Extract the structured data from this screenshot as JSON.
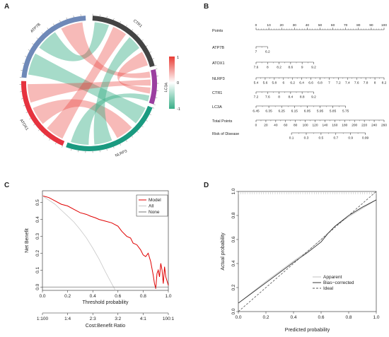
{
  "panel_labels": [
    "A",
    "B",
    "C",
    "D"
  ],
  "chart_data": [
    {
      "panel": "A",
      "type": "chord",
      "genes": [
        "CTR1",
        "LC3A",
        "NLRP3",
        "ATOX1",
        "ATP7B"
      ],
      "gene_colors": [
        "#444444",
        "#9b3fa0",
        "#1a9a80",
        "#e6333f",
        "#6f89b8"
      ],
      "links": [
        {
          "from": "ATP7B",
          "to": "NLRP3",
          "sign": "negative"
        },
        {
          "from": "ATP7B",
          "to": "CTR1",
          "sign": "negative"
        },
        {
          "from": "ATP7B",
          "to": "LC3A",
          "sign": "positive"
        },
        {
          "from": "ATOX1",
          "to": "CTR1",
          "sign": "positive"
        },
        {
          "from": "ATOX1",
          "to": "NLRP3",
          "sign": "positive"
        },
        {
          "from": "ATOX1",
          "to": "LC3A",
          "sign": "positive"
        },
        {
          "from": "CTR1",
          "to": "NLRP3",
          "sign": "negative"
        },
        {
          "from": "CTR1",
          "to": "LC3A",
          "sign": "positive"
        },
        {
          "from": "NLRP3",
          "to": "LC3A",
          "sign": "negative"
        }
      ],
      "legend": {
        "max_label": "1",
        "mid_label": "0",
        "min_label": "-1",
        "max_color": "#e83a33",
        "mid_color": "#ffffff",
        "min_color": "#3aaf88"
      }
    },
    {
      "panel": "B",
      "type": "nomogram",
      "rows": [
        {
          "label": "Points",
          "ticks": [
            "0",
            "10",
            "20",
            "30",
            "40",
            "50",
            "60",
            "70",
            "80",
            "90",
            "100"
          ],
          "from": 0,
          "to": 100
        },
        {
          "label": "ATP7B",
          "ticks": [
            "7",
            "6.2"
          ],
          "from": 0,
          "to": 9
        },
        {
          "label": "ATOX1",
          "ticks": [
            "7.6",
            "8",
            "8.2",
            "8.6",
            "9",
            "9.2"
          ],
          "from": 0,
          "to": 45
        },
        {
          "label": "NLRP3",
          "ticks": [
            "5.4",
            "5.6",
            "5.8",
            "6",
            "6.2",
            "6.4",
            "6.6",
            "6.8",
            "7",
            "7.2",
            "7.4",
            "7.6",
            "7.8",
            "8",
            "8.2"
          ],
          "from": 0,
          "to": 100
        },
        {
          "label": "CTR1",
          "ticks": [
            "7.2",
            "7.6",
            "8",
            "8.4",
            "8.8",
            "9.2"
          ],
          "from": 0,
          "to": 45
        },
        {
          "label": "LC3A",
          "ticks": [
            "6.45",
            "6.35",
            "6.25",
            "6.15",
            "6.05",
            "5.95",
            "5.85",
            "5.75"
          ],
          "from": 0,
          "to": 70
        },
        {
          "label": "Total Points",
          "ticks": [
            "0",
            "20",
            "40",
            "60",
            "80",
            "100",
            "120",
            "140",
            "160",
            "180",
            "200",
            "220",
            "240",
            "260"
          ],
          "from": 0,
          "to": 260
        },
        {
          "label": "Risk of Disease",
          "ticks": [
            "0.1",
            "0.3",
            "0.5",
            "0.7",
            "0.9",
            "0.99"
          ],
          "from": 72,
          "to": 222
        }
      ]
    },
    {
      "panel": "C",
      "type": "line",
      "title": "",
      "xlabel": "Threshold probability",
      "ylabel": "Net Benefit",
      "xlabel2": "Cost:Benefit Ratio",
      "x_ticks": [
        "0.0",
        "0.2",
        "0.4",
        "0.6",
        "0.8",
        "1.0"
      ],
      "x2_ticks": [
        "1:100",
        "1:4",
        "2:3",
        "3:2",
        "4:1",
        "100:1"
      ],
      "y_ticks": [
        "0.0",
        "0.1",
        "0.2",
        "0.3",
        "0.4",
        "0.5"
      ],
      "xlim": [
        0,
        1
      ],
      "ylim": [
        -0.02,
        0.57
      ],
      "legend_position": "top-right",
      "series": [
        {
          "name": "Model",
          "color": "#e00000",
          "x": [
            0.0,
            0.05,
            0.1,
            0.15,
            0.2,
            0.25,
            0.3,
            0.35,
            0.38,
            0.42,
            0.45,
            0.5,
            0.55,
            0.6,
            0.63,
            0.67,
            0.7,
            0.72,
            0.75,
            0.78,
            0.8,
            0.82,
            0.84,
            0.86,
            0.87,
            0.88,
            0.89,
            0.9,
            0.91,
            0.92,
            0.93,
            0.94,
            0.95,
            0.96,
            0.97,
            0.98,
            1.0
          ],
          "y": [
            0.54,
            0.53,
            0.51,
            0.49,
            0.48,
            0.46,
            0.44,
            0.43,
            0.42,
            0.41,
            0.4,
            0.39,
            0.38,
            0.36,
            0.33,
            0.3,
            0.29,
            0.26,
            0.25,
            0.22,
            0.19,
            0.18,
            0.2,
            0.15,
            0.11,
            0.07,
            0.02,
            -0.01,
            0.08,
            0.1,
            0.06,
            0.14,
            0.1,
            0.02,
            0.12,
            0.06,
            0.01
          ]
        },
        {
          "name": "All",
          "color": "#c8c8c8",
          "x": [
            0.0,
            0.05,
            0.1,
            0.15,
            0.2,
            0.25,
            0.3,
            0.35,
            0.4,
            0.45,
            0.5,
            0.55,
            0.58
          ],
          "y": [
            0.54,
            0.515,
            0.49,
            0.455,
            0.42,
            0.385,
            0.34,
            0.29,
            0.23,
            0.165,
            0.09,
            0.02,
            -0.02
          ]
        },
        {
          "name": "None",
          "color": "#777777",
          "x": [
            0.0,
            1.0
          ],
          "y": [
            0.0,
            0.0
          ]
        }
      ]
    },
    {
      "panel": "D",
      "type": "line",
      "title": "",
      "xlabel": "Predicted probability",
      "ylabel": "Actual probability",
      "x_ticks": [
        "0.0",
        "0.2",
        "0.4",
        "0.6",
        "0.8",
        "1.0"
      ],
      "y_ticks": [
        "0.0",
        "0.2",
        "0.4",
        "0.6",
        "0.8",
        "1.0"
      ],
      "xlim": [
        0,
        1
      ],
      "ylim": [
        0,
        1
      ],
      "legend_position": "bottom-right",
      "series": [
        {
          "name": "Apparent",
          "color": "#bbbbbb",
          "dash": "",
          "x": [
            0.0,
            0.2,
            0.4,
            0.5,
            0.6,
            0.7,
            0.8,
            1.0
          ],
          "y": [
            0.07,
            0.25,
            0.42,
            0.5,
            0.6,
            0.71,
            0.79,
            0.93
          ]
        },
        {
          "name": "Bias−corrected",
          "color": "#222222",
          "dash": "",
          "x": [
            0.0,
            0.2,
            0.4,
            0.5,
            0.6,
            0.65,
            0.7,
            0.8,
            0.9,
            1.0
          ],
          "y": [
            0.07,
            0.24,
            0.41,
            0.49,
            0.58,
            0.65,
            0.71,
            0.8,
            0.87,
            0.93
          ]
        },
        {
          "name": "Ideal",
          "color": "#555555",
          "dash": "3,2",
          "x": [
            0.0,
            1.0
          ],
          "y": [
            0.0,
            1.0
          ]
        }
      ]
    }
  ]
}
